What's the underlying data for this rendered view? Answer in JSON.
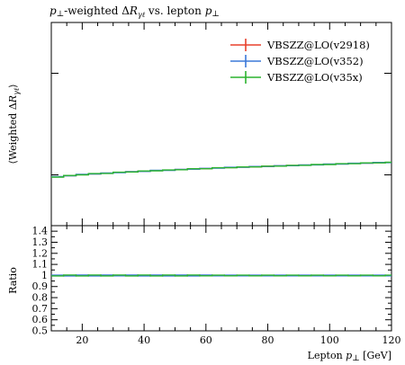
{
  "title": "p⊥-weighted ΔRγℓ vs. lepton p⊥",
  "ylabel_main": "⟨Weighted  ΔRγℓ⟩",
  "ylabel_ratio": "Ratio",
  "xlabel": "Lepton p⊥ [GeV]",
  "colors": {
    "v2918": "#e8412b",
    "v352": "#3b78d8",
    "v35x": "#2bb32e"
  },
  "chart_data": {
    "type": "line",
    "title": "p⊥-weighted ΔRγℓ vs. lepton p⊥",
    "xlabel": "Lepton p⊥ [GeV]",
    "ylabel": "⟨Weighted  ΔRγℓ⟩",
    "xlim": [
      10,
      120
    ],
    "ylim_main": [
      0,
      1
    ],
    "x_edges": [
      10,
      14,
      18,
      22,
      26,
      30,
      34,
      38,
      42,
      46,
      50,
      54,
      58,
      62,
      66,
      70,
      74,
      78,
      82,
      86,
      90,
      94,
      98,
      102,
      106,
      110,
      114,
      118,
      120
    ],
    "series": [
      {
        "name": "VBSZZ@LO(v2918)",
        "color": "#e8412b",
        "values": [
          0.24,
          0.246,
          0.251,
          0.255,
          0.258,
          0.262,
          0.265,
          0.268,
          0.271,
          0.273,
          0.276,
          0.279,
          0.281,
          0.284,
          0.286,
          0.288,
          0.29,
          0.292,
          0.294,
          0.296,
          0.298,
          0.3,
          0.302,
          0.304,
          0.306,
          0.308,
          0.31,
          0.311
        ]
      },
      {
        "name": "VBSZZ@LO(v352)",
        "color": "#3b78d8",
        "values": [
          0.241,
          0.245,
          0.252,
          0.254,
          0.259,
          0.261,
          0.266,
          0.267,
          0.272,
          0.272,
          0.277,
          0.278,
          0.282,
          0.283,
          0.287,
          0.287,
          0.291,
          0.291,
          0.295,
          0.295,
          0.299,
          0.299,
          0.303,
          0.303,
          0.307,
          0.307,
          0.311,
          0.31
        ]
      },
      {
        "name": "VBSZZ@LO(v35x)",
        "color": "#2bb32e",
        "values": [
          0.239,
          0.247,
          0.25,
          0.256,
          0.257,
          0.263,
          0.264,
          0.269,
          0.27,
          0.274,
          0.275,
          0.28,
          0.28,
          0.285,
          0.285,
          0.289,
          0.289,
          0.293,
          0.293,
          0.297,
          0.297,
          0.301,
          0.301,
          0.305,
          0.305,
          0.309,
          0.309,
          0.312
        ]
      }
    ],
    "ratio": {
      "ylim": [
        0.5,
        1.45
      ],
      "yticks": [
        0.5,
        0.6,
        0.7,
        0.8,
        0.9,
        1,
        1.1,
        1.2,
        1.3,
        1.4
      ],
      "series": [
        {
          "name": "VBSZZ@LO(v2918)",
          "color": "#e8412b",
          "values": [
            1,
            1,
            1,
            1,
            1,
            1,
            1,
            1,
            1,
            1,
            1,
            1,
            1,
            1,
            1,
            1,
            1,
            1,
            1,
            1,
            1,
            1,
            1,
            1,
            1,
            1,
            1,
            1
          ]
        },
        {
          "name": "VBSZZ@LO(v352)",
          "color": "#3b78d8",
          "values": [
            1.003,
            0.996,
            1.004,
            0.996,
            1.004,
            0.997,
            1.004,
            0.996,
            1.004,
            0.996,
            1.004,
            0.996,
            1.004,
            0.997,
            1.003,
            0.997,
            1.003,
            0.997,
            1.003,
            0.997,
            1.003,
            0.997,
            1.003,
            0.997,
            1.003,
            0.997,
            1.003,
            0.997
          ]
        },
        {
          "name": "VBSZZ@LO(v35x)",
          "color": "#2bb32e",
          "values": [
            0.996,
            1.004,
            0.996,
            1.004,
            0.996,
            1.004,
            0.996,
            1.004,
            0.996,
            1.004,
            0.996,
            1.004,
            0.997,
            1.003,
            0.997,
            1.003,
            0.997,
            1.003,
            0.997,
            1.003,
            0.997,
            1.003,
            0.997,
            1.003,
            0.997,
            1.003,
            0.997,
            1.003
          ]
        }
      ]
    },
    "xticks": [
      20,
      40,
      60,
      80,
      100,
      120
    ],
    "legend_position": "top-right"
  }
}
